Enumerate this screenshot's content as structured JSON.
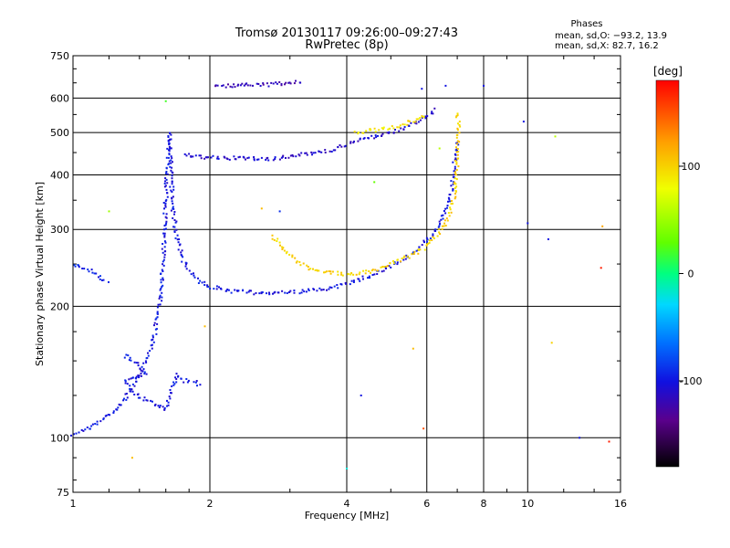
{
  "chart_data": {
    "type": "scatter",
    "title": "Tromsø 20130117 09:26:00–09:27:43",
    "subtitle": "RwPretec (8p)",
    "xlabel": "Frequency [MHz]",
    "ylabel": "Stationary phase Virtual Height [km]",
    "x_scale": "log",
    "y_scale": "log",
    "xlim": [
      1,
      16
    ],
    "ylim": [
      75,
      750
    ],
    "x_ticks": [
      1,
      2,
      4,
      6,
      8,
      10,
      16
    ],
    "y_ticks": [
      75,
      100,
      200,
      300,
      400,
      500,
      600,
      750
    ],
    "grid": true,
    "phase_stats": {
      "title": "Phases",
      "line_o": "mean, sd,O: −93.2, 13.9",
      "line_x": "mean, sd,X:  82.7, 16.2"
    },
    "colorbar": {
      "label": "[deg]",
      "ticks": [
        100,
        0,
        -100
      ],
      "range": [
        -180,
        180
      ]
    },
    "traces": [
      {
        "phase": -100,
        "points": [
          [
            1.0,
            102
          ],
          [
            1.05,
            104
          ],
          [
            1.1,
            106
          ],
          [
            1.15,
            109
          ],
          [
            1.2,
            113
          ],
          [
            1.26,
            117
          ],
          [
            1.3,
            123
          ],
          [
            1.35,
            130
          ],
          [
            1.4,
            140
          ],
          [
            1.45,
            152
          ],
          [
            1.5,
            165
          ],
          [
            1.55,
            200
          ],
          [
            1.58,
            260
          ],
          [
            1.6,
            350
          ],
          [
            1.62,
            450
          ],
          [
            1.63,
            500
          ],
          [
            1.64,
            420
          ],
          [
            1.66,
            330
          ],
          [
            1.7,
            280
          ],
          [
            1.75,
            255
          ],
          [
            1.8,
            240
          ],
          [
            1.9,
            228
          ],
          [
            2.0,
            222
          ],
          [
            2.2,
            217
          ],
          [
            2.5,
            215
          ],
          [
            3.0,
            215
          ],
          [
            3.5,
            218
          ],
          [
            4.0,
            225
          ],
          [
            4.5,
            235
          ],
          [
            5.0,
            247
          ],
          [
            5.5,
            262
          ],
          [
            6.0,
            282
          ],
          [
            6.3,
            300
          ],
          [
            6.6,
            330
          ],
          [
            6.8,
            370
          ],
          [
            6.9,
            420
          ],
          [
            7.0,
            480
          ]
        ]
      },
      {
        "phase": -110,
        "points": [
          [
            1.75,
            445
          ],
          [
            1.9,
            440
          ],
          [
            2.0,
            438
          ],
          [
            2.2,
            437
          ],
          [
            2.5,
            436
          ],
          [
            2.8,
            436
          ],
          [
            3.0,
            440
          ],
          [
            3.2,
            445
          ],
          [
            3.5,
            450
          ],
          [
            3.8,
            460
          ],
          [
            4.0,
            470
          ],
          [
            4.3,
            480
          ],
          [
            4.6,
            490
          ],
          [
            5.0,
            500
          ],
          [
            5.3,
            510
          ],
          [
            5.6,
            525
          ],
          [
            6.0,
            545
          ],
          [
            6.3,
            570
          ]
        ]
      },
      {
        "phase": -120,
        "points": [
          [
            2.05,
            640
          ],
          [
            2.2,
            640
          ],
          [
            2.4,
            642
          ],
          [
            2.6,
            643
          ],
          [
            2.8,
            646
          ],
          [
            3.0,
            650
          ],
          [
            3.2,
            655
          ]
        ]
      },
      {
        "phase": 100,
        "points": [
          [
            2.75,
            290
          ],
          [
            2.9,
            270
          ],
          [
            3.1,
            255
          ],
          [
            3.3,
            245
          ],
          [
            3.6,
            240
          ],
          [
            4.0,
            237
          ],
          [
            4.5,
            240
          ],
          [
            5.0,
            250
          ],
          [
            5.5,
            260
          ],
          [
            6.0,
            275
          ],
          [
            6.4,
            295
          ],
          [
            6.7,
            320
          ],
          [
            6.9,
            360
          ],
          [
            7.0,
            420
          ],
          [
            7.05,
            500
          ],
          [
            7.0,
            560
          ]
        ]
      },
      {
        "phase": 90,
        "points": [
          [
            4.2,
            500
          ],
          [
            4.5,
            505
          ],
          [
            4.8,
            510
          ],
          [
            5.1,
            515
          ],
          [
            5.4,
            525
          ],
          [
            5.7,
            535
          ],
          [
            6.0,
            550
          ]
        ]
      },
      {
        "phase": -95,
        "points": [
          [
            1.0,
            250
          ],
          [
            1.05,
            245
          ],
          [
            1.1,
            240
          ],
          [
            1.15,
            232
          ],
          [
            1.2,
            228
          ]
        ]
      },
      {
        "phase": -100,
        "points": [
          [
            1.3,
            155
          ],
          [
            1.35,
            150
          ],
          [
            1.4,
            145
          ],
          [
            1.45,
            140
          ],
          [
            1.3,
            135
          ],
          [
            1.35,
            128
          ],
          [
            1.4,
            124
          ],
          [
            1.5,
            120
          ],
          [
            1.55,
            118
          ],
          [
            1.6,
            116
          ],
          [
            1.65,
            130
          ],
          [
            1.7,
            140
          ],
          [
            1.75,
            135
          ],
          [
            1.85,
            135
          ],
          [
            1.9,
            130
          ]
        ]
      }
    ],
    "scattered_points": [
      {
        "x": 1.2,
        "y": 330,
        "phase": 50
      },
      {
        "x": 1.6,
        "y": 590,
        "phase": 20
      },
      {
        "x": 2.85,
        "y": 330,
        "phase": -90
      },
      {
        "x": 4.0,
        "y": 85,
        "phase": -20
      },
      {
        "x": 4.3,
        "y": 125,
        "phase": -100
      },
      {
        "x": 5.9,
        "y": 105,
        "phase": 150
      },
      {
        "x": 5.85,
        "y": 630,
        "phase": -100
      },
      {
        "x": 6.6,
        "y": 640,
        "phase": -100
      },
      {
        "x": 8.0,
        "y": 640,
        "phase": -100
      },
      {
        "x": 9.8,
        "y": 530,
        "phase": -100
      },
      {
        "x": 10.0,
        "y": 310,
        "phase": -100
      },
      {
        "x": 11.1,
        "y": 285,
        "phase": -100
      },
      {
        "x": 11.3,
        "y": 165,
        "phase": 100
      },
      {
        "x": 11.5,
        "y": 490,
        "phase": 60
      },
      {
        "x": 13.0,
        "y": 100,
        "phase": -100
      },
      {
        "x": 14.6,
        "y": 305,
        "phase": 120
      },
      {
        "x": 15.1,
        "y": 98,
        "phase": 170
      },
      {
        "x": 14.5,
        "y": 245,
        "phase": 170
      },
      {
        "x": 1.35,
        "y": 90,
        "phase": 110
      },
      {
        "x": 1.95,
        "y": 180,
        "phase": 110
      },
      {
        "x": 2.6,
        "y": 335,
        "phase": 110
      },
      {
        "x": 4.6,
        "y": 385,
        "phase": 30
      },
      {
        "x": 6.4,
        "y": 460,
        "phase": 60
      },
      {
        "x": 5.6,
        "y": 160,
        "phase": 110
      }
    ]
  }
}
